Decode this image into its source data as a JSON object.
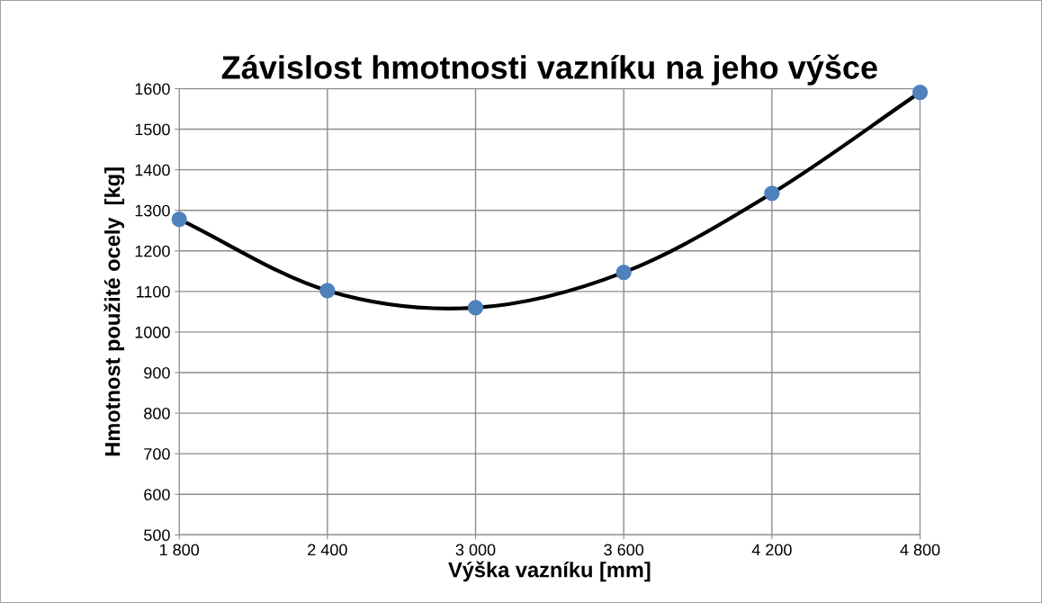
{
  "chart_data": {
    "type": "line",
    "title": "Závislost hmotnosti vazníku na jeho výšce",
    "xlabel": "Výška vazníku [mm]",
    "ylabel": "Hmotnost použité ocely  [kg]",
    "x": [
      1800,
      2400,
      3000,
      3600,
      4200,
      4800
    ],
    "series": [
      {
        "color": "#000000",
        "colors": [
          "#4f81bd",
          "#4f81bd",
          "#4f81bd",
          "#4f81bd",
          "#4f81bd",
          "#4f81bd"
        ],
        "values": [
          1278,
          1102,
          1060,
          1147,
          1342,
          1591
        ],
        "line_style": "solid",
        "marker": "circle"
      }
    ],
    "xlim": [
      1800,
      4800
    ],
    "xticks": [
      {
        "value": 1800,
        "label": "1 800"
      },
      {
        "value": 2400,
        "label": "2 400"
      },
      {
        "value": 3000,
        "label": "3 000"
      },
      {
        "value": 3600,
        "label": "3 600"
      },
      {
        "value": 4200,
        "label": "4 200"
      },
      {
        "value": 4800,
        "label": "4 800"
      }
    ],
    "ylim": [
      500,
      1600
    ],
    "yticks": [
      500,
      600,
      700,
      800,
      900,
      1000,
      1100,
      1200,
      1300,
      1400,
      1500,
      1600
    ],
    "grid": true,
    "legend": false
  }
}
